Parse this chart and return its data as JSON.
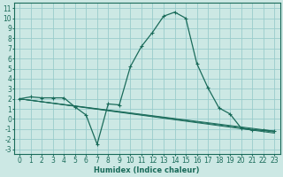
{
  "xlabel": "Humidex (Indice chaleur)",
  "bg_color": "#cce8e4",
  "grid_color": "#99cccc",
  "line_color": "#1a6b5a",
  "xlim": [
    -0.5,
    23.5
  ],
  "ylim": [
    -3.5,
    11.5
  ],
  "xticks": [
    0,
    1,
    2,
    3,
    4,
    5,
    6,
    7,
    8,
    9,
    10,
    11,
    12,
    13,
    14,
    15,
    16,
    17,
    18,
    19,
    20,
    21,
    22,
    23
  ],
  "yticks": [
    -3,
    -2,
    -1,
    0,
    1,
    2,
    3,
    4,
    5,
    6,
    7,
    8,
    9,
    10,
    11
  ],
  "line1_x": [
    0,
    1,
    2,
    3,
    4,
    5,
    6,
    7,
    8,
    9,
    10,
    11,
    12,
    13,
    14,
    15,
    16,
    17,
    18,
    19,
    20,
    21,
    22,
    23
  ],
  "line1_y": [
    2.0,
    2.2,
    2.1,
    2.1,
    2.1,
    1.2,
    0.4,
    -2.5,
    1.5,
    1.4,
    5.2,
    7.2,
    8.6,
    10.2,
    10.6,
    10.0,
    5.5,
    3.1,
    1.1,
    0.5,
    -0.9,
    -1.1,
    -1.1,
    -1.2
  ],
  "line2_x": [
    0,
    23
  ],
  "line2_y": [
    2.0,
    -1.2
  ],
  "line3_x": [
    0,
    23
  ],
  "line3_y": [
    2.0,
    -1.3
  ],
  "line4_x": [
    0,
    23
  ],
  "line4_y": [
    2.0,
    -1.4
  ],
  "tick_fontsize": 5.5,
  "xlabel_fontsize": 6.0
}
